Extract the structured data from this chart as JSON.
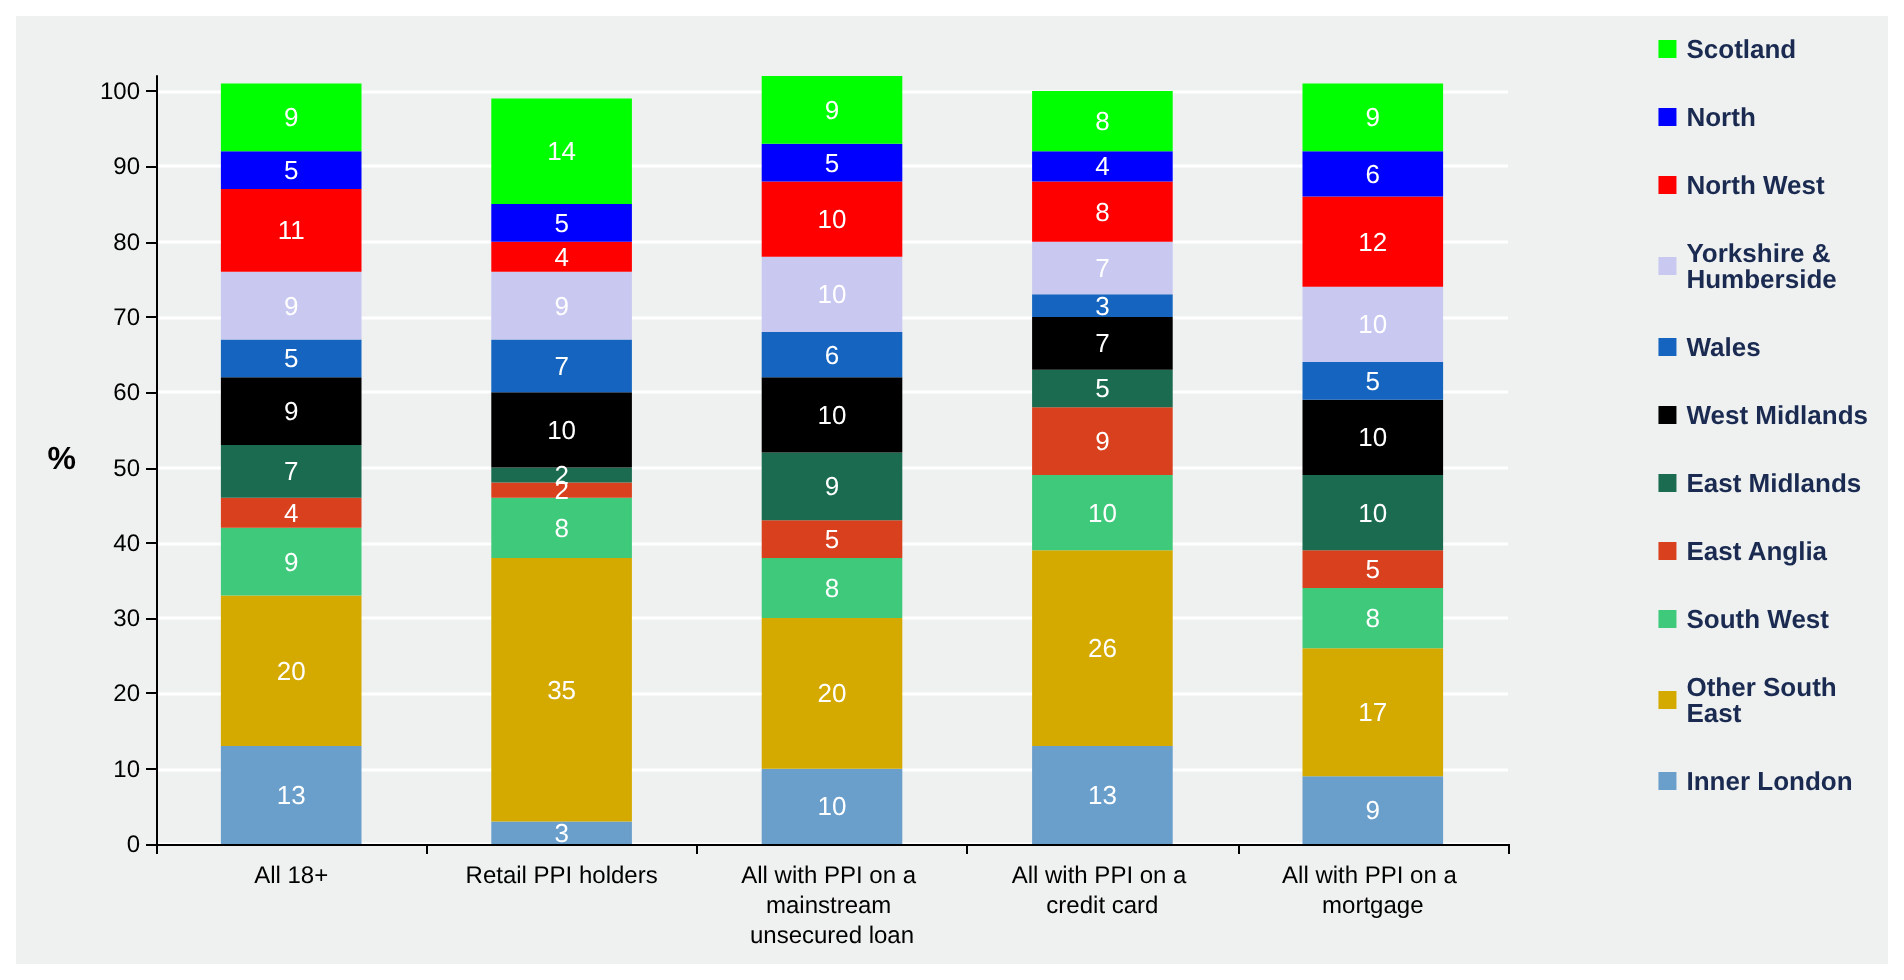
{
  "chart_data": {
    "type": "bar",
    "stacked": true,
    "ylabel": "%",
    "categories": [
      "All 18+",
      "Retail PPI holders",
      "All with PPI on a mainstream unsecured loan",
      "All with PPI on a credit card",
      "All with PPI on a mortgage"
    ],
    "series": [
      {
        "name": "Inner London",
        "color": "#6a9fcb",
        "values": [
          13,
          3,
          10,
          13,
          9
        ]
      },
      {
        "name": "Other South East",
        "color": "#d4aa00",
        "values": [
          20,
          35,
          20,
          26,
          17
        ]
      },
      {
        "name": "South West",
        "color": "#3fc97a",
        "values": [
          9,
          8,
          8,
          10,
          8
        ]
      },
      {
        "name": "East Anglia",
        "color": "#d9411e",
        "values": [
          4,
          2,
          5,
          9,
          5
        ]
      },
      {
        "name": "East Midlands",
        "color": "#1a6b50",
        "values": [
          7,
          2,
          9,
          5,
          10
        ]
      },
      {
        "name": "West Midlands",
        "color": "#000000",
        "values": [
          9,
          10,
          10,
          7,
          10
        ]
      },
      {
        "name": "Wales",
        "color": "#1565c0",
        "values": [
          5,
          7,
          6,
          3,
          5
        ]
      },
      {
        "name": "Yorkshire & Humberside",
        "color": "#c8c8f0",
        "values": [
          9,
          9,
          10,
          7,
          10
        ]
      },
      {
        "name": "North West",
        "color": "#ff0000",
        "values": [
          11,
          4,
          10,
          8,
          12
        ]
      },
      {
        "name": "North",
        "color": "#0000ff",
        "values": [
          5,
          5,
          5,
          4,
          6
        ]
      },
      {
        "name": "Scotland",
        "color": "#00ff00",
        "values": [
          9,
          14,
          9,
          8,
          9
        ]
      }
    ],
    "ylim": [
      0,
      102
    ],
    "yticks": [
      0,
      10,
      20,
      30,
      40,
      50,
      60,
      70,
      80,
      90,
      100
    ],
    "grid": "y",
    "legend": "right",
    "data_labels": true
  }
}
